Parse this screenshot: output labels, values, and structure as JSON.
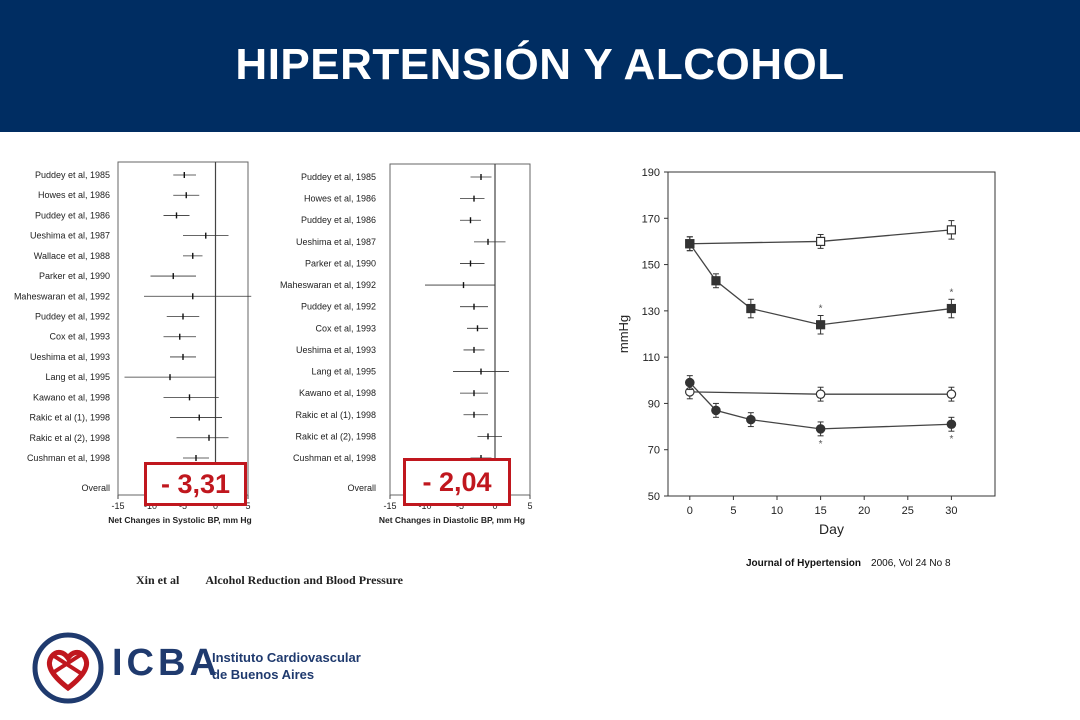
{
  "header": {
    "title": "HIPERTENSIÓN Y ALCOHOL"
  },
  "chart_data": [
    {
      "type": "forest",
      "xlabel": "Net Changes in Systolic BP, mm Hg",
      "xlim": [
        -15,
        5
      ],
      "xticks": [
        -15,
        -10,
        -5,
        0,
        5
      ],
      "studies": [
        {
          "label": "Puddey et al, 1985",
          "est": -4.8,
          "lo": -6.5,
          "hi": -3.0
        },
        {
          "label": "Howes et al, 1986",
          "est": -4.5,
          "lo": -6.5,
          "hi": -2.5
        },
        {
          "label": "Puddey et al, 1986",
          "est": -6.0,
          "lo": -8.0,
          "hi": -4.0
        },
        {
          "label": "Ueshima et al, 1987",
          "est": -1.5,
          "lo": -5.0,
          "hi": 2.0
        },
        {
          "label": "Wallace et al, 1988",
          "est": -3.5,
          "lo": -5.0,
          "hi": -2.0
        },
        {
          "label": "Parker et al, 1990",
          "est": -6.5,
          "lo": -10.0,
          "hi": -3.0
        },
        {
          "label": "Maheswaran et al, 1992",
          "est": -3.5,
          "lo": -11.0,
          "hi": 5.5
        },
        {
          "label": "Puddey et al, 1992",
          "est": -5.0,
          "lo": -7.5,
          "hi": -2.5
        },
        {
          "label": "Cox et al, 1993",
          "est": -5.5,
          "lo": -8.0,
          "hi": -3.0
        },
        {
          "label": "Ueshima et al, 1993",
          "est": -5.0,
          "lo": -7.0,
          "hi": -3.0
        },
        {
          "label": "Lang et al, 1995",
          "est": -7.0,
          "lo": -14.0,
          "hi": 0.0
        },
        {
          "label": "Kawano et al, 1998",
          "est": -4.0,
          "lo": -8.0,
          "hi": 0.5
        },
        {
          "label": "Rakic et al (1), 1998",
          "est": -2.5,
          "lo": -7.0,
          "hi": 1.0
        },
        {
          "label": "Rakic et al (2), 1998",
          "est": -1.0,
          "lo": -6.0,
          "hi": 2.0
        },
        {
          "label": "Cushman et al, 1998",
          "est": -3.0,
          "lo": -5.0,
          "hi": -1.0
        }
      ],
      "overall_label": "Overall",
      "overall": {
        "est": -3.31
      }
    },
    {
      "type": "forest",
      "xlabel": "Net Changes in Diastolic BP, mm Hg",
      "xlim": [
        -15,
        5
      ],
      "xticks": [
        -15,
        -10,
        -5,
        0,
        5
      ],
      "studies": [
        {
          "label": "Puddey et al, 1985",
          "est": -2.0,
          "lo": -3.5,
          "hi": -0.5
        },
        {
          "label": "Howes et al, 1986",
          "est": -3.0,
          "lo": -5.0,
          "hi": -1.5
        },
        {
          "label": "Puddey et al, 1986",
          "est": -3.5,
          "lo": -5.0,
          "hi": -2.0
        },
        {
          "label": "Ueshima et al, 1987",
          "est": -1.0,
          "lo": -3.0,
          "hi": 1.5
        },
        {
          "label": "Parker et al, 1990",
          "est": -3.5,
          "lo": -5.0,
          "hi": -1.5
        },
        {
          "label": "Maheswaran et al, 1992",
          "est": -4.5,
          "lo": -10.0,
          "hi": 0.0
        },
        {
          "label": "Puddey et al, 1992",
          "est": -3.0,
          "lo": -5.0,
          "hi": -1.0
        },
        {
          "label": "Cox et al, 1993",
          "est": -2.5,
          "lo": -4.0,
          "hi": -1.0
        },
        {
          "label": "Ueshima et al, 1993",
          "est": -3.0,
          "lo": -4.5,
          "hi": -1.5
        },
        {
          "label": "Lang et al, 1995",
          "est": -2.0,
          "lo": -6.0,
          "hi": 2.0
        },
        {
          "label": "Kawano et al, 1998",
          "est": -3.0,
          "lo": -5.0,
          "hi": -1.0
        },
        {
          "label": "Rakic et al (1), 1998",
          "est": -3.0,
          "lo": -4.5,
          "hi": -1.0
        },
        {
          "label": "Rakic et al (2), 1998",
          "est": -1.0,
          "lo": -2.5,
          "hi": 1.0
        },
        {
          "label": "Cushman et al, 1998",
          "est": -2.0,
          "lo": -3.5,
          "hi": -0.5
        }
      ],
      "overall_label": "Overall",
      "overall": {
        "est": -2.04
      }
    },
    {
      "type": "line",
      "xlabel": "Day",
      "ylabel": "mmHg",
      "xlim": [
        -2.5,
        35
      ],
      "ylim": [
        50,
        190
      ],
      "xticks": [
        0,
        5,
        10,
        15,
        20,
        25,
        30
      ],
      "yticks": [
        50,
        70,
        90,
        110,
        130,
        150,
        170,
        190
      ],
      "series": [
        {
          "marker": "open-square",
          "points": [
            [
              0,
              159
            ],
            [
              15,
              160
            ],
            [
              30,
              165
            ]
          ],
          "err": [
            3,
            3,
            4
          ]
        },
        {
          "marker": "filled-square",
          "points": [
            [
              0,
              159
            ],
            [
              3,
              143
            ],
            [
              7,
              131
            ],
            [
              15,
              124
            ],
            [
              30,
              131
            ]
          ],
          "err": [
            3,
            3,
            4,
            4,
            4
          ],
          "asterisk": [
            15,
            30
          ]
        },
        {
          "marker": "open-circle",
          "points": [
            [
              0,
              95
            ],
            [
              15,
              94
            ],
            [
              30,
              94
            ]
          ],
          "err": [
            3,
            3,
            3
          ]
        },
        {
          "marker": "filled-circle",
          "points": [
            [
              0,
              99
            ],
            [
              3,
              87
            ],
            [
              7,
              83
            ],
            [
              15,
              79
            ],
            [
              30,
              81
            ]
          ],
          "err": [
            3,
            3,
            3,
            3,
            3
          ],
          "asterisk": [
            15,
            30
          ]
        }
      ],
      "asterisk_text": "*"
    }
  ],
  "callouts": {
    "systolic": "- 3,31",
    "diastolic": "- 2,04"
  },
  "captions": {
    "left_author": "Xin et al",
    "left_title": "Alcohol Reduction and Blood Pressure",
    "right_journal": "Journal of Hypertension",
    "right_issue": "2006, Vol 24 No 8"
  },
  "logo": {
    "abbr": "ICBA",
    "name_line1": "Instituto Cardiovascular",
    "name_line2": "de Buenos Aires"
  },
  "colors": {
    "header_bg": "#002d62",
    "callout": "#c0171e",
    "logo": "#1f3a6e"
  }
}
